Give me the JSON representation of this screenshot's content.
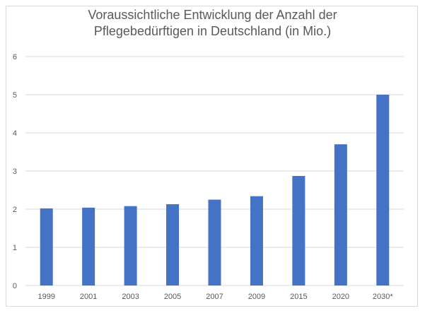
{
  "chart_data": {
    "type": "bar",
    "title_lines": [
      "Voraussichtliche Entwicklung der Anzahl der",
      "Pflegebedürftigen in Deutschland (in Mio.)"
    ],
    "categories": [
      "1999",
      "2001",
      "2003",
      "2005",
      "2007",
      "2009",
      "2015",
      "2020",
      "2030*"
    ],
    "values": [
      2.02,
      2.04,
      2.08,
      2.13,
      2.25,
      2.34,
      2.87,
      3.7,
      5.0
    ],
    "ylim": [
      0,
      6
    ],
    "yticks": [
      "0",
      "1",
      "2",
      "3",
      "4",
      "5",
      "6"
    ],
    "grid": true,
    "bar_color": "#4472c4",
    "grid_color": "#d9d9d9"
  }
}
